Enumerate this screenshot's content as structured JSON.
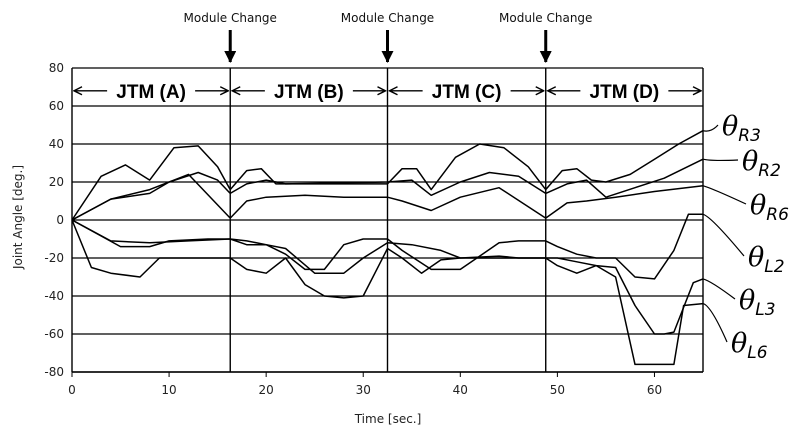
{
  "chart_data": {
    "type": "line",
    "xlabel": "Time [sec.]",
    "ylabel": "Joint Angle [deg.]",
    "xlim": [
      0,
      65
    ],
    "ylim": [
      -80,
      80
    ],
    "x_ticks": [
      0,
      10,
      20,
      30,
      40,
      50,
      60
    ],
    "y_ticks": [
      80,
      60,
      40,
      20,
      0,
      -20,
      -40,
      -60,
      -80
    ],
    "horizontal_grid": true,
    "phase_boundaries": [
      16.3,
      32.5,
      48.8
    ],
    "phases": [
      {
        "label": "JTM (A)",
        "x_start": 0,
        "x_end": 16.3
      },
      {
        "label": "JTM (B)",
        "x_start": 16.3,
        "x_end": 32.5
      },
      {
        "label": "JTM (C)",
        "x_start": 32.5,
        "x_end": 48.8
      },
      {
        "label": "JTM (D)",
        "x_start": 48.8,
        "x_end": 65
      }
    ],
    "phase_band_y": 68,
    "annotations": [
      {
        "text": "Module Change",
        "x": 16.3
      },
      {
        "text": "Module Change",
        "x": 32.5
      },
      {
        "text": "Module Change",
        "x": 48.8
      }
    ],
    "series": [
      {
        "name": "θR3",
        "label_main": "θ",
        "label_sub": "R3",
        "x": [
          0,
          3,
          5.5,
          8,
          10.5,
          13,
          15,
          16.3,
          18,
          19.5,
          21,
          32.5,
          34,
          35.5,
          37,
          39.5,
          42,
          44.5,
          47,
          48.8,
          50.5,
          52,
          53.5,
          55,
          57.5,
          60,
          62.5,
          65
        ],
        "y": [
          0,
          23,
          29,
          21,
          38,
          39,
          28,
          16,
          26,
          27,
          19,
          19,
          27,
          27,
          16,
          33,
          40,
          38,
          28,
          16,
          26,
          27,
          21,
          20,
          24,
          32,
          40,
          47
        ]
      },
      {
        "name": "θR2",
        "label_main": "θ",
        "label_sub": "R2",
        "x": [
          0,
          4,
          8,
          10,
          13,
          15,
          16.3,
          18,
          20,
          22,
          32.5,
          35,
          37,
          40,
          43,
          46,
          48.8,
          51,
          53,
          55,
          58,
          61,
          65
        ],
        "y": [
          0,
          11,
          14,
          20,
          25,
          21,
          14,
          19,
          21,
          19,
          20,
          21,
          13,
          20,
          25,
          23,
          14,
          19,
          21,
          12,
          17,
          22,
          32
        ]
      },
      {
        "name": "θR6",
        "label_main": "θ",
        "label_sub": "R6",
        "x": [
          0,
          4,
          8,
          12,
          16.3,
          18,
          20,
          24,
          28,
          32.5,
          34,
          37,
          40,
          44,
          48.8,
          51,
          53,
          56,
          60,
          65
        ],
        "y": [
          0,
          11,
          16,
          24,
          1,
          10,
          12,
          13,
          12,
          12,
          10,
          5,
          12,
          17,
          1,
          9,
          10,
          12,
          15,
          18
        ]
      },
      {
        "name": "θL2",
        "label_main": "θ",
        "label_sub": "L2",
        "x": [
          0,
          4,
          8,
          12,
          16.3,
          18,
          20,
          22,
          24,
          26,
          28,
          30,
          32.5,
          34,
          37,
          40,
          44,
          46,
          48.8,
          50,
          52,
          54,
          56,
          58,
          60,
          62,
          63.5,
          65
        ],
        "y": [
          0,
          -11,
          -12,
          -11,
          -10,
          -13,
          -13,
          -18,
          -26,
          -26,
          -13,
          -10,
          -10,
          -16,
          -26,
          -26,
          -12,
          -11,
          -11,
          -14,
          -18,
          -20,
          -20,
          -30,
          -31,
          -16,
          3,
          3
        ]
      },
      {
        "name": "θL3",
        "label_main": "θ",
        "label_sub": "L3",
        "x": [
          0,
          5,
          8,
          10,
          14,
          16.3,
          18,
          20,
          22,
          25,
          28,
          30,
          32.5,
          35,
          38,
          40,
          44,
          46,
          48.8,
          50,
          52,
          54,
          56,
          58,
          60,
          61,
          62,
          63,
          64,
          65
        ],
        "y": [
          0,
          -14,
          -14,
          -11,
          -10,
          -10,
          -11,
          -13,
          -15,
          -28,
          -28,
          -20,
          -12,
          -13,
          -16,
          -20,
          -19,
          -20,
          -20,
          -20,
          -22,
          -24,
          -25,
          -45,
          -60,
          -60,
          -59,
          -46,
          -33,
          -31
        ]
      },
      {
        "name": "θL6",
        "label_main": "θ",
        "label_sub": "L6",
        "x": [
          0,
          2,
          4,
          7,
          9,
          13,
          16.3,
          18,
          20,
          22,
          24,
          26,
          28,
          30,
          32.5,
          34,
          36,
          38,
          40,
          44,
          46,
          48.8,
          50,
          52,
          54,
          56,
          58,
          60,
          62,
          63,
          65
        ],
        "y": [
          0,
          -25,
          -28,
          -30,
          -20,
          -20,
          -20,
          -26,
          -28,
          -20,
          -34,
          -40,
          -41,
          -40,
          -15,
          -20,
          -28,
          -21,
          -20,
          -20,
          -20,
          -20,
          -24,
          -28,
          -24,
          -30,
          -76,
          -76,
          -76,
          -45,
          -44
        ]
      }
    ]
  }
}
